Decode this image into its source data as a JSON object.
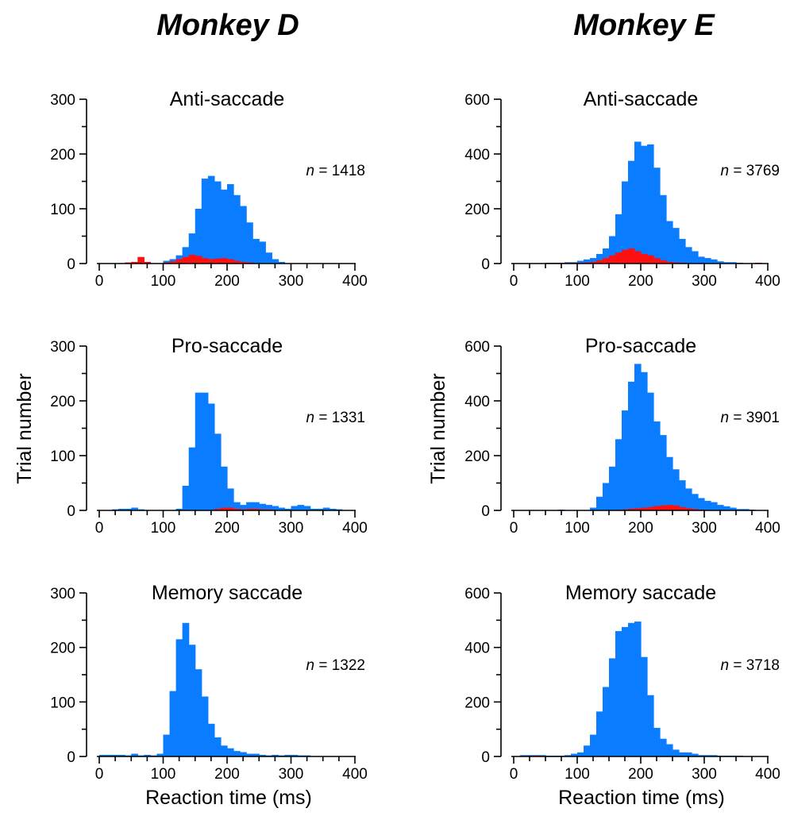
{
  "colors": {
    "all_trials": "#0a7cff",
    "error_trials": "#ff1010"
  },
  "figure": {
    "columns": [
      {
        "title": "Monkey D"
      },
      {
        "title": "Monkey E"
      }
    ],
    "ylabel": "Trial number",
    "xlabel": "Reaction time (ms)"
  },
  "chart_data": [
    {
      "type": "bar",
      "title": "Anti-saccade",
      "column": "Monkey D",
      "n_label": "n",
      "n_value": "= 1418",
      "xlim": [
        0,
        400
      ],
      "ylim": [
        0,
        300
      ],
      "xticks": [
        0,
        100,
        200,
        300,
        400
      ],
      "yticks": [
        0,
        100,
        200,
        300
      ],
      "bin_start": 0,
      "bin_width": 10,
      "series": [
        {
          "values": [
            0,
            0,
            0,
            0,
            0,
            0,
            0,
            2,
            0,
            0,
            5,
            8,
            15,
            30,
            55,
            100,
            155,
            160,
            150,
            135,
            145,
            125,
            105,
            75,
            45,
            40,
            20,
            8,
            3,
            0,
            0,
            0,
            0,
            0,
            0,
            0,
            0,
            0,
            0,
            0
          ]
        },
        {
          "values": [
            0,
            0,
            0,
            0,
            2,
            3,
            12,
            3,
            0,
            0,
            2,
            4,
            8,
            12,
            16,
            14,
            10,
            8,
            9,
            10,
            8,
            5,
            3,
            2,
            0,
            0,
            0,
            0,
            0,
            0,
            0,
            0,
            0,
            0,
            0,
            0,
            0,
            0,
            0,
            0
          ]
        }
      ]
    },
    {
      "type": "bar",
      "title": "Anti-saccade",
      "column": "Monkey E",
      "n_label": "n",
      "n_value": "= 3769",
      "xlim": [
        0,
        400
      ],
      "ylim": [
        0,
        600
      ],
      "xticks": [
        0,
        100,
        200,
        300,
        400
      ],
      "yticks": [
        0,
        200,
        400,
        600
      ],
      "bin_start": 0,
      "bin_width": 10,
      "series": [
        {
          "values": [
            0,
            0,
            0,
            0,
            0,
            3,
            3,
            3,
            5,
            5,
            10,
            15,
            20,
            35,
            55,
            100,
            180,
            300,
            375,
            445,
            430,
            435,
            350,
            250,
            155,
            130,
            90,
            60,
            45,
            25,
            20,
            15,
            8,
            5,
            5,
            3,
            0,
            0,
            0,
            0
          ]
        },
        {
          "values": [
            0,
            0,
            0,
            0,
            0,
            2,
            2,
            3,
            3,
            3,
            3,
            4,
            6,
            12,
            20,
            30,
            40,
            50,
            55,
            45,
            35,
            30,
            20,
            12,
            6,
            4,
            3,
            0,
            0,
            0,
            0,
            0,
            0,
            0,
            0,
            0,
            0,
            0,
            3,
            0
          ]
        }
      ]
    },
    {
      "type": "bar",
      "title": "Pro-saccade",
      "column": "Monkey D",
      "n_label": "n",
      "n_value": "= 1331",
      "xlim": [
        0,
        400
      ],
      "ylim": [
        0,
        300
      ],
      "xticks": [
        0,
        100,
        200,
        300,
        400
      ],
      "yticks": [
        0,
        100,
        200,
        300
      ],
      "bin_start": 0,
      "bin_width": 10,
      "series": [
        {
          "values": [
            0,
            0,
            2,
            3,
            3,
            5,
            2,
            0,
            0,
            0,
            0,
            0,
            3,
            45,
            115,
            215,
            215,
            195,
            140,
            80,
            40,
            15,
            10,
            15,
            15,
            12,
            10,
            8,
            5,
            3,
            8,
            10,
            8,
            3,
            3,
            5,
            3,
            2,
            0,
            0
          ]
        },
        {
          "values": [
            0,
            0,
            0,
            0,
            0,
            0,
            0,
            0,
            0,
            0,
            0,
            0,
            0,
            0,
            0,
            0,
            0,
            0,
            3,
            5,
            5,
            3,
            2,
            3,
            3,
            2,
            2,
            0,
            0,
            0,
            0,
            0,
            0,
            0,
            0,
            0,
            0,
            0,
            0,
            0
          ]
        }
      ]
    },
    {
      "type": "bar",
      "title": "Pro-saccade",
      "column": "Monkey E",
      "n_label": "n",
      "n_value": "= 3901",
      "xlim": [
        0,
        400
      ],
      "ylim": [
        0,
        600
      ],
      "xticks": [
        0,
        100,
        200,
        300,
        400
      ],
      "yticks": [
        0,
        200,
        400,
        600
      ],
      "bin_start": 0,
      "bin_width": 10,
      "series": [
        {
          "values": [
            0,
            0,
            0,
            0,
            0,
            0,
            0,
            3,
            0,
            0,
            0,
            0,
            10,
            50,
            100,
            160,
            260,
            365,
            470,
            535,
            505,
            430,
            325,
            275,
            195,
            150,
            110,
            80,
            60,
            45,
            35,
            30,
            20,
            15,
            10,
            5,
            5,
            3,
            0,
            0
          ]
        },
        {
          "values": [
            0,
            0,
            0,
            0,
            0,
            0,
            0,
            0,
            0,
            0,
            0,
            0,
            0,
            0,
            0,
            0,
            2,
            4,
            6,
            8,
            10,
            12,
            16,
            18,
            20,
            18,
            12,
            8,
            5,
            3,
            0,
            0,
            0,
            0,
            0,
            0,
            0,
            0,
            0,
            0
          ]
        }
      ]
    },
    {
      "type": "bar",
      "title": "Memory saccade",
      "column": "Monkey D",
      "n_label": "n",
      "n_value": "= 1322",
      "xlim": [
        0,
        400
      ],
      "ylim": [
        0,
        300
      ],
      "xticks": [
        0,
        100,
        200,
        300,
        400
      ],
      "yticks": [
        0,
        100,
        200,
        300
      ],
      "bin_start": 0,
      "bin_width": 10,
      "series": [
        {
          "values": [
            3,
            3,
            3,
            3,
            2,
            5,
            2,
            3,
            2,
            5,
            40,
            120,
            215,
            245,
            205,
            160,
            110,
            60,
            35,
            20,
            15,
            10,
            8,
            5,
            5,
            3,
            2,
            3,
            2,
            3,
            3,
            2,
            2,
            0,
            0,
            0,
            0,
            0,
            0,
            0
          ]
        },
        {
          "values": [
            0,
            0,
            0,
            0,
            0,
            0,
            0,
            0,
            0,
            0,
            0,
            0,
            0,
            0,
            0,
            0,
            0,
            0,
            0,
            0,
            0,
            0,
            0,
            0,
            0,
            0,
            0,
            0,
            0,
            0,
            0,
            0,
            0,
            0,
            0,
            0,
            0,
            0,
            0,
            0
          ]
        }
      ]
    },
    {
      "type": "bar",
      "title": "Memory saccade",
      "column": "Monkey E",
      "n_label": "n",
      "n_value": "= 3718",
      "xlim": [
        0,
        400
      ],
      "ylim": [
        0,
        600
      ],
      "xticks": [
        0,
        100,
        200,
        300,
        400
      ],
      "yticks": [
        0,
        200,
        400,
        600
      ],
      "bin_start": 0,
      "bin_width": 10,
      "series": [
        {
          "values": [
            0,
            5,
            5,
            5,
            5,
            3,
            3,
            3,
            5,
            10,
            15,
            40,
            80,
            165,
            255,
            360,
            460,
            475,
            490,
            495,
            365,
            225,
            105,
            65,
            45,
            25,
            15,
            15,
            10,
            5,
            5,
            5,
            3,
            3,
            3,
            3,
            0,
            0,
            0,
            0
          ]
        },
        {
          "values": [
            0,
            0,
            2,
            3,
            2,
            0,
            0,
            0,
            0,
            0,
            0,
            0,
            0,
            0,
            2,
            0,
            0,
            0,
            0,
            0,
            0,
            0,
            0,
            0,
            0,
            0,
            0,
            0,
            0,
            0,
            0,
            0,
            0,
            0,
            0,
            0,
            0,
            0,
            0,
            0
          ]
        }
      ]
    }
  ]
}
